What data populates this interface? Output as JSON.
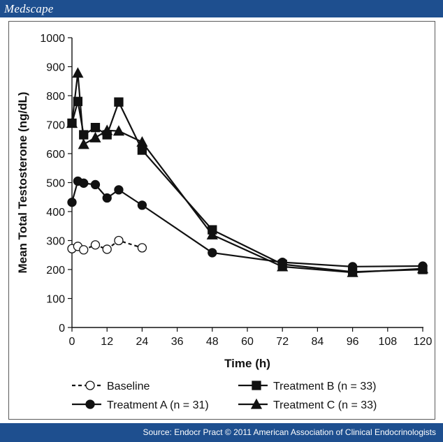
{
  "header": {
    "brand": "Medscape"
  },
  "footer": {
    "source": "Source: Endocr Pract © 2011 American Association of Clinical Endocrinologists"
  },
  "colors": {
    "bar": "#1e4f8f",
    "ink": "#111111",
    "frame": "#5a5a5a"
  },
  "chart_data": {
    "type": "line",
    "title": "",
    "xlabel": "Time (h)",
    "ylabel": "Mean Total Testosterone (ng/dL)",
    "xlim": [
      0,
      120
    ],
    "ylim": [
      0,
      1000
    ],
    "xticks": [
      0,
      12,
      24,
      36,
      48,
      60,
      72,
      84,
      96,
      108,
      120
    ],
    "yticks": [
      0,
      100,
      200,
      300,
      400,
      500,
      600,
      700,
      800,
      900,
      1000
    ],
    "ytick_labels": [
      "0",
      "100",
      "200",
      "300",
      "400",
      "500",
      "600",
      "700",
      "800",
      "900",
      "1000"
    ],
    "grid": false,
    "legend_position": "bottom",
    "series": [
      {
        "name": "Baseline",
        "marker": "open-circle",
        "line": "dashed",
        "points": [
          [
            0,
            272
          ],
          [
            2,
            280
          ],
          [
            4,
            268
          ],
          [
            8,
            285
          ],
          [
            12,
            270
          ],
          [
            16,
            300
          ],
          [
            24,
            275
          ]
        ]
      },
      {
        "name": "Treatment A (n = 31)",
        "marker": "filled-circle",
        "line": "solid",
        "points": [
          [
            0,
            432
          ],
          [
            2,
            505
          ],
          [
            4,
            498
          ],
          [
            8,
            493
          ],
          [
            12,
            447
          ],
          [
            16,
            475
          ],
          [
            24,
            422
          ],
          [
            48,
            258
          ],
          [
            72,
            225
          ],
          [
            96,
            210
          ],
          [
            120,
            212
          ]
        ]
      },
      {
        "name": "Treatment B (n = 33)",
        "marker": "filled-square",
        "line": "solid",
        "points": [
          [
            0,
            705
          ],
          [
            2,
            780
          ],
          [
            4,
            665
          ],
          [
            8,
            690
          ],
          [
            12,
            665
          ],
          [
            16,
            778
          ],
          [
            24,
            612
          ],
          [
            48,
            337
          ],
          [
            72,
            218
          ],
          [
            96,
            192
          ],
          [
            120,
            200
          ]
        ]
      },
      {
        "name": "Treatment C (n = 33)",
        "marker": "filled-triangle",
        "line": "solid",
        "points": [
          [
            0,
            705
          ],
          [
            2,
            878
          ],
          [
            4,
            632
          ],
          [
            8,
            655
          ],
          [
            12,
            680
          ],
          [
            16,
            678
          ],
          [
            24,
            640
          ],
          [
            48,
            320
          ],
          [
            72,
            210
          ],
          [
            96,
            190
          ],
          [
            120,
            203
          ]
        ]
      }
    ]
  }
}
